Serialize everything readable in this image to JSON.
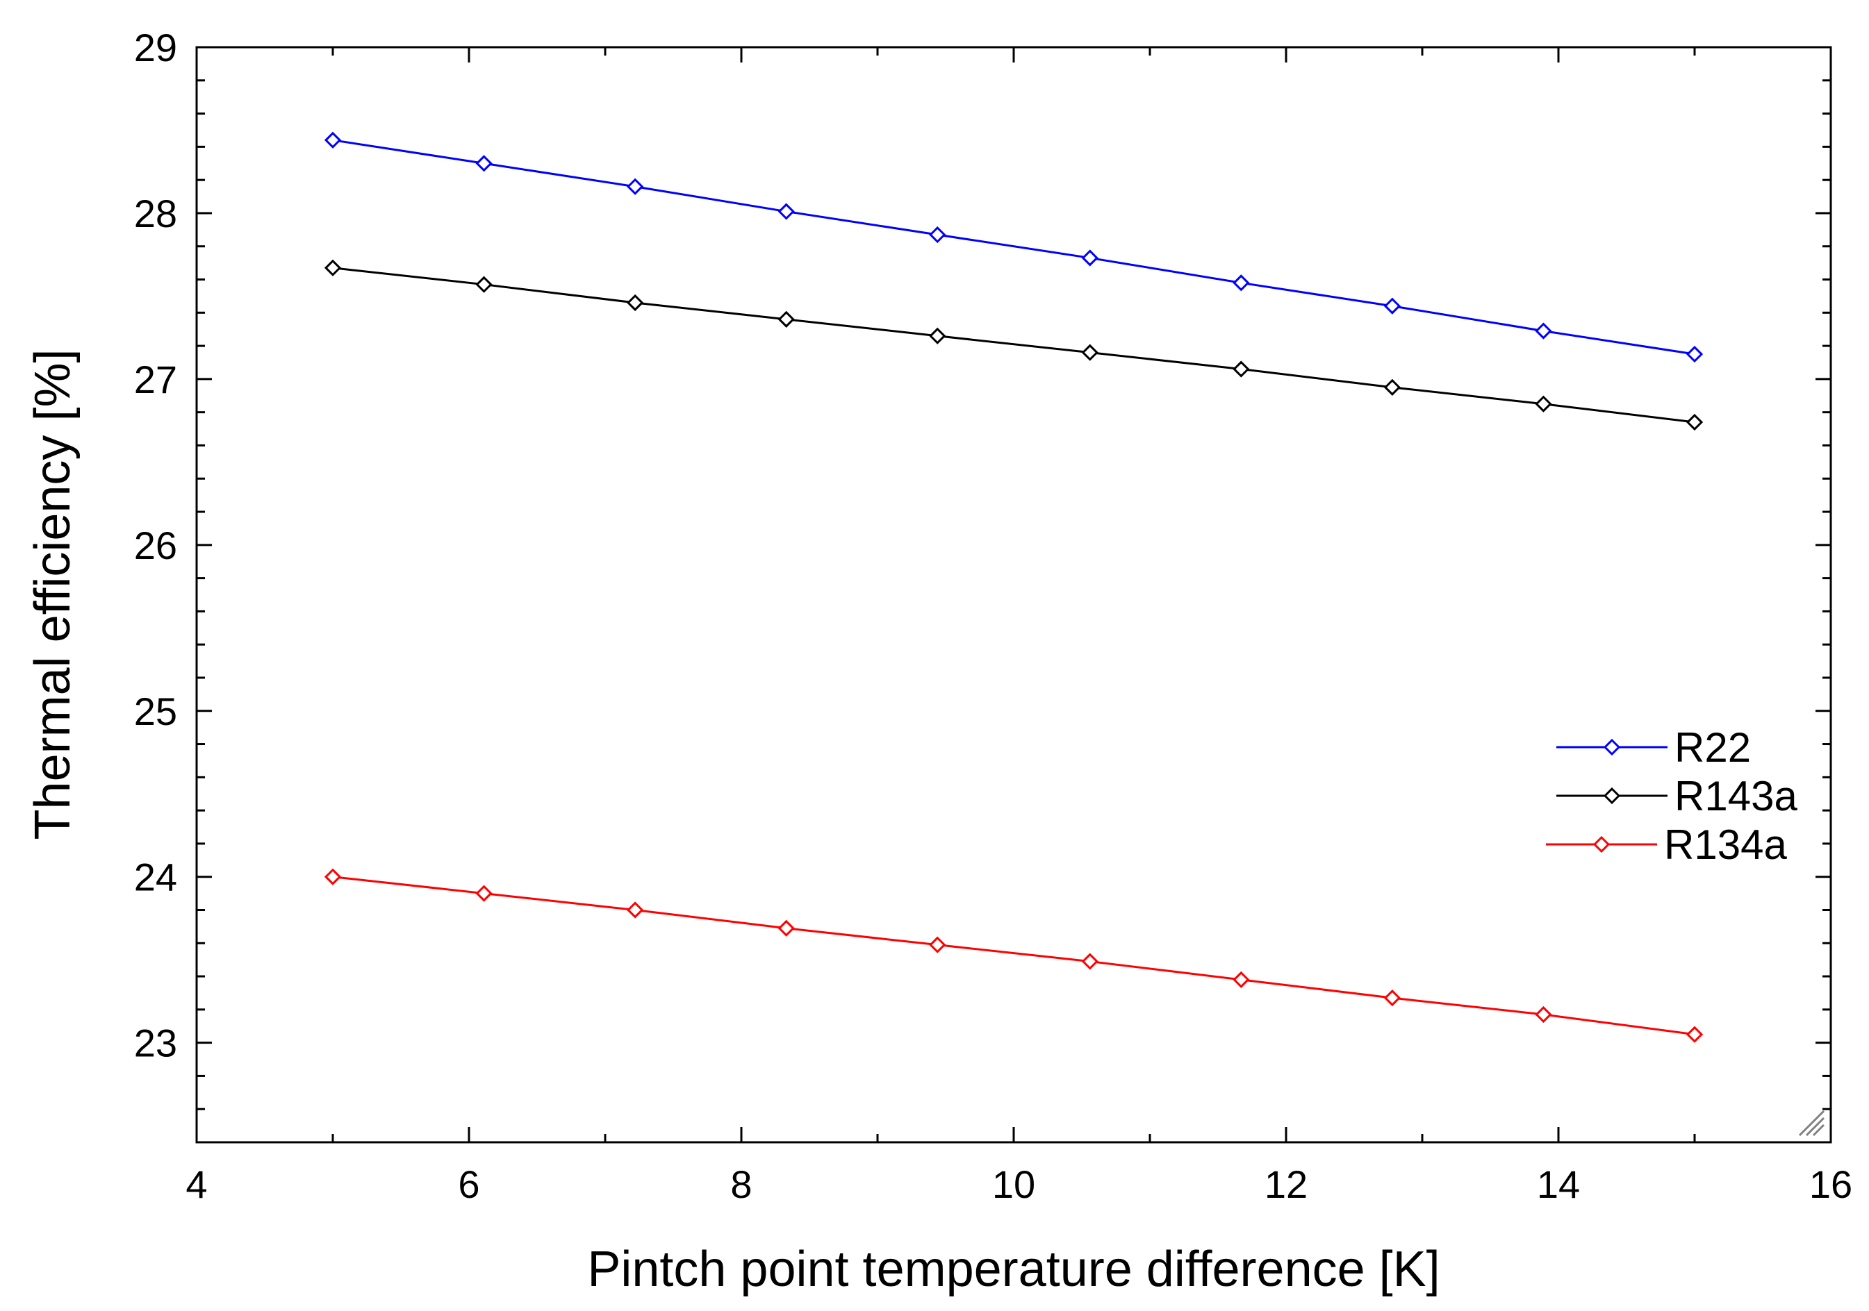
{
  "chart_data": {
    "type": "line",
    "title": "",
    "xlabel": "Pintch point temperature difference [K]",
    "ylabel": "Thermal efficiency [%]",
    "xlim": [
      4,
      16
    ],
    "ylim": [
      22.4,
      29
    ],
    "xticks": [
      4,
      6,
      8,
      10,
      12,
      14,
      16
    ],
    "yticks": [
      23,
      24,
      25,
      26,
      27,
      28,
      29
    ],
    "grid": false,
    "legend_position": "right",
    "x": [
      5.0,
      6.11,
      7.22,
      8.33,
      9.44,
      10.56,
      11.67,
      12.78,
      13.89,
      15.0
    ],
    "series": [
      {
        "name": "R22",
        "color": "#0000ff",
        "marker": "diamond",
        "values": [
          28.44,
          28.3,
          28.16,
          28.01,
          27.87,
          27.73,
          27.58,
          27.44,
          27.29,
          27.15
        ]
      },
      {
        "name": "R143a",
        "color": "#000000",
        "marker": "diamond",
        "values": [
          27.67,
          27.57,
          27.46,
          27.36,
          27.26,
          27.16,
          27.06,
          26.95,
          26.85,
          26.74
        ]
      },
      {
        "name": "R134a",
        "color": "#ff0000",
        "marker": "diamond",
        "values": [
          24.0,
          23.9,
          23.8,
          23.69,
          23.59,
          23.49,
          23.38,
          23.27,
          23.17,
          23.05
        ]
      }
    ]
  }
}
